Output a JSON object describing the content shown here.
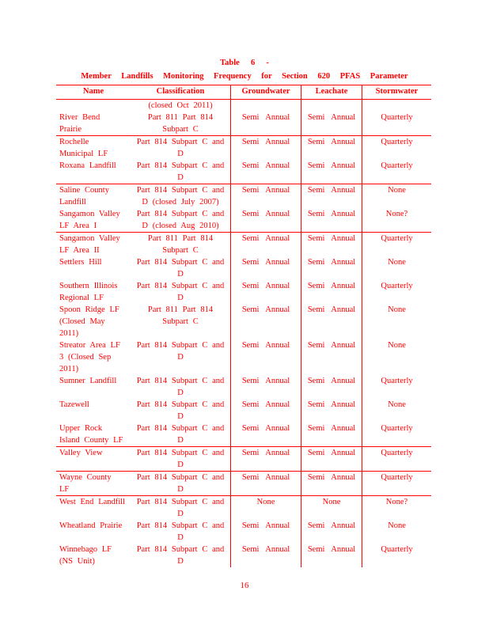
{
  "colors": {
    "text": "#ff0000",
    "border": "#ff0000"
  },
  "title": {
    "line1": "Table 6 -",
    "line2": "Member Landfills Monitoring Frequency for Section 620 PFAS Parameter"
  },
  "page": {
    "number": "16"
  },
  "table": {
    "headers": [
      "Name",
      "Classification",
      "Groundwater",
      "Leachate",
      "Stormwater"
    ],
    "rows": [
      {
        "name": [
          "",
          "River Bend",
          "Prairie"
        ],
        "classification": [
          "(closed Oct 2011)",
          "Part 811 Part 814",
          "Subpart C"
        ],
        "groundwater": [
          "",
          "Semi Annual"
        ],
        "leachate": [
          "",
          "Semi Annual"
        ],
        "stormwater": [
          "",
          "Quarterly"
        ],
        "rule_after": true
      },
      {
        "name": [
          "Rochelle",
          "Municipal LF"
        ],
        "classification": [
          "Part 814 Subpart C and",
          "D"
        ],
        "groundwater": [
          "Semi Annual"
        ],
        "leachate": [
          "Semi Annual"
        ],
        "stormwater": [
          "Quarterly"
        ],
        "rule_after": false
      },
      {
        "name": [
          "Roxana Landfill"
        ],
        "classification": [
          "Part 814 Subpart C and",
          "D"
        ],
        "groundwater": [
          "Semi Annual"
        ],
        "leachate": [
          "Semi Annual"
        ],
        "stormwater": [
          "Quarterly"
        ],
        "rule_after": true
      },
      {
        "name": [
          "Saline County",
          "Landfill"
        ],
        "classification": [
          "Part 814 Subpart C and",
          "D (closed July 2007)"
        ],
        "groundwater": [
          "Semi Annual"
        ],
        "leachate": [
          "Semi Annual"
        ],
        "stormwater": [
          "None"
        ],
        "rule_after": false
      },
      {
        "name": [
          "Sangamon Valley",
          "LF Area I"
        ],
        "classification": [
          "Part 814 Subpart C and",
          "D (closed Aug 2010)"
        ],
        "groundwater": [
          "Semi Annual"
        ],
        "leachate": [
          "Semi Annual"
        ],
        "stormwater": [
          "None?"
        ],
        "rule_after": true
      },
      {
        "name": [
          "Sangamon Valley",
          "LF Area II"
        ],
        "classification": [
          "Part 811 Part 814",
          "Subpart C"
        ],
        "groundwater": [
          "Semi Annual"
        ],
        "leachate": [
          "Semi Annual"
        ],
        "stormwater": [
          "Quarterly"
        ],
        "rule_after": false
      },
      {
        "name": [
          "Settlers Hill"
        ],
        "classification": [
          "Part 814 Subpart C and",
          "D"
        ],
        "groundwater": [
          "Semi Annual"
        ],
        "leachate": [
          "Semi Annual"
        ],
        "stormwater": [
          "None"
        ],
        "rule_after": false
      },
      {
        "name": [
          "Southern Illinois",
          "Regional LF"
        ],
        "classification": [
          "Part 814 Subpart C and",
          "D"
        ],
        "groundwater": [
          "Semi Annual"
        ],
        "leachate": [
          "Semi Annual"
        ],
        "stormwater": [
          "Quarterly"
        ],
        "rule_after": false
      },
      {
        "name": [
          "Spoon Ridge LF",
          "(Closed May",
          "2011)"
        ],
        "classification": [
          "Part 811 Part 814",
          "Subpart C"
        ],
        "groundwater": [
          "Semi Annual"
        ],
        "leachate": [
          "Semi Annual"
        ],
        "stormwater": [
          "None"
        ],
        "rule_after": false
      },
      {
        "name": [
          "Streator Area LF",
          "3 (Closed Sep",
          "2011)"
        ],
        "classification": [
          "Part 814 Subpart C and",
          "D"
        ],
        "groundwater": [
          "Semi Annual"
        ],
        "leachate": [
          "Semi Annual"
        ],
        "stormwater": [
          "None"
        ],
        "rule_after": false
      },
      {
        "name": [
          "Sumner Landfill"
        ],
        "classification": [
          "Part 814 Subpart C and",
          "D"
        ],
        "groundwater": [
          "Semi Annual"
        ],
        "leachate": [
          "Semi Annual"
        ],
        "stormwater": [
          "Quarterly"
        ],
        "rule_after": false
      },
      {
        "name": [
          "Tazewell"
        ],
        "classification": [
          "Part 814 Subpart C and",
          "D"
        ],
        "groundwater": [
          "Semi Annual"
        ],
        "leachate": [
          "Semi Annual"
        ],
        "stormwater": [
          "None"
        ],
        "rule_after": false
      },
      {
        "name": [
          "Upper Rock",
          "Island County LF"
        ],
        "classification": [
          "Part 814 Subpart C and",
          "D"
        ],
        "groundwater": [
          "Semi Annual"
        ],
        "leachate": [
          "Semi Annual"
        ],
        "stormwater": [
          "Quarterly"
        ],
        "rule_after": true
      },
      {
        "name": [
          "Valley View"
        ],
        "classification": [
          "Part 814 Subpart C and",
          "D"
        ],
        "groundwater": [
          "Semi Annual"
        ],
        "leachate": [
          "Semi Annual"
        ],
        "stormwater": [
          "Quarterly"
        ],
        "rule_after": true
      },
      {
        "name": [
          "Wayne County",
          "LF"
        ],
        "classification": [
          "Part 814 Subpart C and",
          "D"
        ],
        "groundwater": [
          "Semi Annual"
        ],
        "leachate": [
          "Semi Annual"
        ],
        "stormwater": [
          "Quarterly"
        ],
        "rule_after": true
      },
      {
        "name": [
          "West End Landfill"
        ],
        "classification": [
          "Part 814 Subpart C and",
          "D"
        ],
        "groundwater": [
          "None"
        ],
        "leachate": [
          "None"
        ],
        "stormwater": [
          "None?"
        ],
        "rule_after": false
      },
      {
        "name": [
          "Wheatland Prairie"
        ],
        "classification": [
          "Part 814 Subpart C and",
          "D"
        ],
        "groundwater": [
          "Semi Annual"
        ],
        "leachate": [
          "Semi Annual"
        ],
        "stormwater": [
          "None"
        ],
        "rule_after": false
      },
      {
        "name": [
          "Winnebago LF",
          "(NS Unit)"
        ],
        "classification": [
          "Part 814 Subpart C and",
          "D"
        ],
        "groundwater": [
          "Semi Annual"
        ],
        "leachate": [
          "Semi Annual"
        ],
        "stormwater": [
          "Quarterly"
        ],
        "rule_after": false
      }
    ]
  }
}
